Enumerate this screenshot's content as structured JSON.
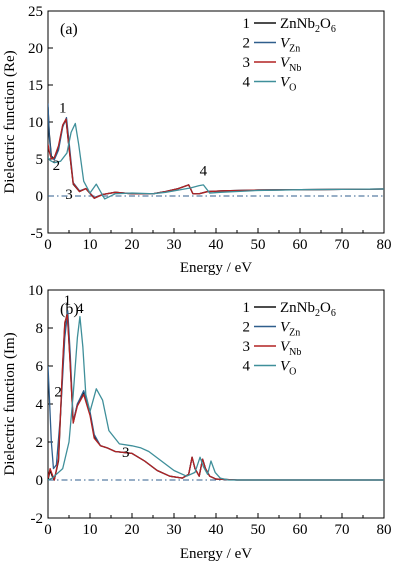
{
  "chart_data": [
    {
      "type": "line",
      "panel_label": "(a)",
      "xlabel": "Energy / eV",
      "ylabel": "Dielectric function (Re)",
      "xlim": [
        0,
        80
      ],
      "ylim": [
        -5,
        25
      ],
      "xticks": [
        0,
        10,
        20,
        30,
        40,
        50,
        60,
        70,
        80
      ],
      "yticks": [
        -5,
        0,
        5,
        10,
        15,
        20,
        25
      ],
      "grid": false,
      "legend_position": "top-right",
      "reference_line_y": 0,
      "annotations": [
        {
          "text": "1",
          "x": 3.5,
          "y": 11.3
        },
        {
          "text": "2",
          "x": 2.0,
          "y": 3.5
        },
        {
          "text": "3",
          "x": 5.0,
          "y": -0.4
        },
        {
          "text": "4",
          "x": 37.0,
          "y": 2.8
        }
      ],
      "series": [
        {
          "label_num": "1",
          "name": "ZnNb2O6",
          "color": "#111111",
          "x": [
            0,
            0.3,
            0.8,
            1.5,
            2.5,
            3.5,
            4.3,
            5.0,
            6.0,
            7.5,
            9.0,
            11.0,
            13.0,
            16.0,
            20.0,
            25.0,
            28.0,
            31.0,
            33.5,
            34.5,
            36.0,
            38.0,
            42.0,
            50.0,
            60.0,
            70.0,
            80.0
          ],
          "y": [
            12.0,
            8.5,
            5.4,
            5.0,
            6.5,
            9.5,
            10.3,
            6.5,
            1.6,
            0.6,
            1.0,
            -0.3,
            0.2,
            0.5,
            0.3,
            0.3,
            0.6,
            1.0,
            1.5,
            0.3,
            0.3,
            0.6,
            0.7,
            0.8,
            0.85,
            0.9,
            0.95
          ]
        },
        {
          "label_num": "2",
          "name": "V_Zn",
          "color": "#2f5e8c",
          "x": [
            0,
            0.3,
            0.8,
            1.5,
            2.5,
            3.5,
            4.4,
            5.1,
            6.0,
            7.5,
            9.0,
            11.0,
            13.0,
            16.0,
            20.0,
            25.0,
            28.0,
            31.0,
            33.5,
            34.5,
            36.0,
            38.0,
            42.0,
            50.0,
            60.0,
            70.0,
            80.0
          ],
          "y": [
            12.5,
            8.0,
            5.2,
            4.9,
            6.2,
            9.3,
            10.6,
            6.8,
            1.8,
            0.7,
            1.0,
            -0.2,
            0.2,
            0.5,
            0.3,
            0.3,
            0.6,
            1.0,
            1.5,
            0.3,
            0.3,
            0.6,
            0.7,
            0.8,
            0.85,
            0.9,
            0.95
          ]
        },
        {
          "label_num": "3",
          "name": "V_Nb",
          "color": "#b22222",
          "x": [
            0,
            0.3,
            0.8,
            1.5,
            2.5,
            3.5,
            4.3,
            5.0,
            6.0,
            7.5,
            9.0,
            11.0,
            13.0,
            16.0,
            20.0,
            25.0,
            28.0,
            31.0,
            33.5,
            34.5,
            36.0,
            38.0,
            42.0,
            50.0,
            60.0,
            70.0,
            80.0
          ],
          "y": [
            7.0,
            6.0,
            5.0,
            5.2,
            6.8,
            9.6,
            10.4,
            6.6,
            1.7,
            0.6,
            1.0,
            -0.3,
            0.2,
            0.5,
            0.3,
            0.3,
            0.6,
            1.0,
            1.5,
            0.3,
            0.3,
            0.6,
            0.7,
            0.8,
            0.85,
            0.9,
            0.95
          ]
        },
        {
          "label_num": "4",
          "name": "V_O",
          "color": "#3f8f9a",
          "x": [
            0,
            0.5,
            1.5,
            3.0,
            4.5,
            5.5,
            6.5,
            7.3,
            8.5,
            10.0,
            11.5,
            13.5,
            16.0,
            20.0,
            25.0,
            28.0,
            31.0,
            34.0,
            36.0,
            37.0,
            38.5,
            41.0,
            50.0,
            60.0,
            70.0,
            80.0
          ],
          "y": [
            5.2,
            4.8,
            4.5,
            4.7,
            5.8,
            8.6,
            9.8,
            7.0,
            2.0,
            0.4,
            1.6,
            -0.4,
            0.3,
            0.4,
            0.3,
            0.5,
            0.8,
            1.1,
            1.4,
            1.5,
            0.4,
            0.5,
            0.75,
            0.85,
            0.9,
            0.95
          ]
        }
      ]
    },
    {
      "type": "line",
      "panel_label": "(b)",
      "xlabel": "Energy / eV",
      "ylabel": "Dielectric function (Im)",
      "xlim": [
        0,
        80
      ],
      "ylim": [
        -2,
        10
      ],
      "xticks": [
        0,
        10,
        20,
        30,
        40,
        50,
        60,
        70,
        80
      ],
      "yticks": [
        -2,
        0,
        2,
        4,
        6,
        8,
        10
      ],
      "grid": false,
      "legend_position": "top-right",
      "reference_line_y": 0,
      "annotations": [
        {
          "text": "1",
          "x": 4.6,
          "y": 9.2
        },
        {
          "text": "4",
          "x": 7.6,
          "y": 8.8
        },
        {
          "text": "2",
          "x": 2.4,
          "y": 4.4
        },
        {
          "text": "3",
          "x": 18.5,
          "y": 1.2
        }
      ],
      "series": [
        {
          "label_num": "1",
          "name": "ZnNb2O6",
          "color": "#111111",
          "x": [
            0,
            0.5,
            1.0,
            1.5,
            2.5,
            3.5,
            4.0,
            4.6,
            5.2,
            6.0,
            7.0,
            8.5,
            10.0,
            11.0,
            12.5,
            14.0,
            16.0,
            20.0,
            23.0,
            26.0,
            29.0,
            32.0,
            33.5,
            34.3,
            35.0,
            36.0,
            36.8,
            37.5,
            38.5,
            40.0,
            45.0,
            60.0,
            80.0
          ],
          "y": [
            0.0,
            0.5,
            0.2,
            0.0,
            1.0,
            6.0,
            8.2,
            8.8,
            6.5,
            3.0,
            4.0,
            4.6,
            3.5,
            2.3,
            1.8,
            1.7,
            1.5,
            1.4,
            1.0,
            0.5,
            0.2,
            0.1,
            0.3,
            1.2,
            0.6,
            0.2,
            1.1,
            0.6,
            0.2,
            0.05,
            0.0,
            0.0,
            0.0
          ]
        },
        {
          "label_num": "2",
          "name": "V_Zn",
          "color": "#2f5e8c",
          "x": [
            0,
            0.3,
            0.8,
            1.3,
            2.0,
            3.0,
            4.0,
            4.7,
            5.3,
            6.0,
            7.0,
            8.5,
            10.0,
            11.0,
            12.5,
            14.0,
            16.0,
            20.0,
            23.0,
            26.0,
            29.0,
            32.0,
            33.5,
            34.3,
            35.0,
            36.0,
            36.8,
            37.5,
            38.5,
            40.0,
            45.0,
            60.0,
            80.0
          ],
          "y": [
            6.0,
            4.5,
            2.0,
            0.6,
            0.8,
            3.5,
            7.5,
            8.9,
            6.6,
            3.1,
            4.0,
            4.7,
            3.6,
            2.4,
            1.8,
            1.7,
            1.5,
            1.4,
            1.0,
            0.5,
            0.2,
            0.1,
            0.3,
            1.2,
            0.6,
            0.2,
            1.1,
            0.6,
            0.2,
            0.05,
            0.0,
            0.0,
            0.0
          ]
        },
        {
          "label_num": "3",
          "name": "V_Nb",
          "color": "#b22222",
          "x": [
            0,
            0.5,
            1.0,
            1.5,
            2.5,
            3.5,
            4.0,
            4.6,
            5.2,
            6.0,
            7.0,
            8.5,
            10.0,
            11.0,
            12.5,
            14.0,
            16.0,
            20.0,
            23.0,
            26.0,
            29.0,
            32.0,
            33.5,
            34.3,
            35.0,
            36.0,
            36.8,
            37.5,
            38.5,
            40.0,
            45.0,
            60.0,
            80.0
          ],
          "y": [
            0.1,
            0.6,
            0.3,
            0.0,
            1.1,
            6.2,
            8.3,
            8.7,
            6.4,
            3.0,
            3.9,
            4.5,
            3.4,
            2.2,
            1.8,
            1.7,
            1.5,
            1.4,
            1.0,
            0.5,
            0.2,
            0.1,
            0.3,
            1.2,
            0.6,
            0.2,
            1.1,
            0.6,
            0.2,
            0.05,
            0.0,
            0.0,
            0.0
          ]
        },
        {
          "label_num": "4",
          "name": "V_O",
          "color": "#3f8f9a",
          "x": [
            0,
            1.0,
            2.0,
            3.5,
            5.0,
            6.0,
            7.0,
            7.6,
            8.3,
            9.0,
            10.0,
            11.5,
            13.0,
            14.5,
            17.0,
            20.0,
            22.0,
            24.0,
            27.0,
            30.0,
            33.0,
            35.0,
            36.2,
            37.0,
            38.0,
            38.8,
            39.8,
            41.0,
            43.0,
            50.0,
            80.0
          ],
          "y": [
            0.0,
            0.1,
            0.3,
            0.6,
            2.0,
            4.5,
            7.5,
            8.6,
            7.0,
            4.5,
            3.6,
            4.8,
            4.2,
            2.6,
            1.9,
            1.8,
            1.7,
            1.5,
            1.0,
            0.5,
            0.2,
            0.4,
            1.2,
            0.7,
            0.3,
            1.0,
            0.4,
            0.1,
            0.0,
            0.0,
            0.0
          ]
        }
      ]
    }
  ]
}
